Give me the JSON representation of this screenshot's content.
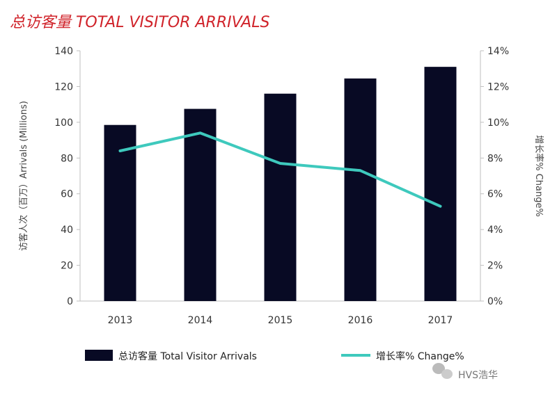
{
  "chart_data": {
    "type": "bar",
    "title": "总访客量 TOTAL VISITOR ARRIVALS",
    "categories": [
      "2013",
      "2014",
      "2015",
      "2016",
      "2017"
    ],
    "series": [
      {
        "name": "总访客量 Total Visitor Arrivals",
        "type": "bar",
        "axis": "left",
        "values": [
          98.5,
          107.5,
          116,
          124.5,
          131
        ],
        "color": "#080a24"
      },
      {
        "name": "增长率% Change%",
        "type": "line",
        "axis": "right",
        "values": [
          8.4,
          9.4,
          7.7,
          7.3,
          5.3
        ],
        "color": "#3ec9bd"
      }
    ],
    "ylabel": "访客人次（百万）Arrivals (Millions)",
    "y2label": "增长率% Change%",
    "ylim": [
      0,
      140
    ],
    "y2lim": [
      0,
      14
    ],
    "yticks": [
      "0",
      "20",
      "40",
      "60",
      "80",
      "100",
      "120",
      "140"
    ],
    "y2ticks": [
      "0%",
      "2%",
      "4%",
      "6%",
      "8%",
      "10%",
      "12%",
      "14%"
    ],
    "grid": false,
    "legend_position": "bottom"
  },
  "watermark": {
    "text": "HVS浩华"
  }
}
